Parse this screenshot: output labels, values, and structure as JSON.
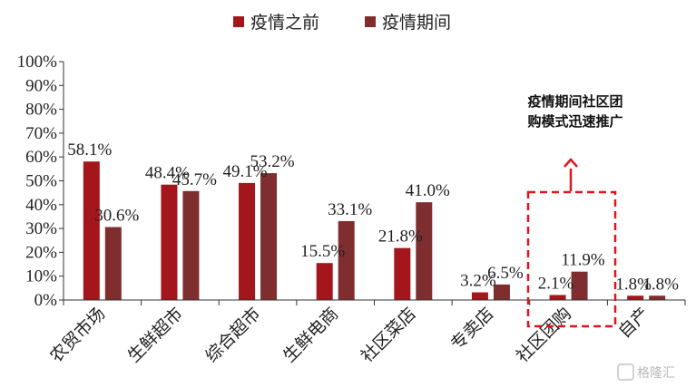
{
  "chart_data": {
    "type": "bar",
    "categories": [
      "农贸市场",
      "生鲜超市",
      "综合超市",
      "生鲜电商",
      "社区菜店",
      "专卖店",
      "社区团购",
      "自产"
    ],
    "series": [
      {
        "name": "疫情之前",
        "values": [
          58.1,
          48.4,
          49.1,
          15.5,
          21.8,
          3.2,
          2.1,
          1.8
        ],
        "labels": [
          "58.1%",
          "48.4%",
          "49.1%",
          "15.5%",
          "21.8%",
          "3.2%",
          "2.1%",
          "1.8%"
        ],
        "color": "#a3161b"
      },
      {
        "name": "疫情期间",
        "values": [
          30.6,
          45.7,
          53.2,
          33.1,
          41.0,
          6.5,
          11.9,
          1.8
        ],
        "labels": [
          "30.6%",
          "45.7%",
          "53.2%",
          "33.1%",
          "41.0%",
          "6.5%",
          "11.9%",
          "1.8%"
        ],
        "color": "#7f2e30"
      }
    ],
    "yticks": [
      "0%",
      "10%",
      "20%",
      "30%",
      "40%",
      "50%",
      "60%",
      "70%",
      "80%",
      "90%",
      "100%"
    ],
    "ylim": [
      0,
      100
    ],
    "legend": "top",
    "grid": false,
    "annotation": {
      "lines": [
        "疫情期间社区团",
        "购模式迅速推广"
      ],
      "highlight_category": "社区团购"
    }
  },
  "watermark": {
    "text": "格隆汇"
  }
}
